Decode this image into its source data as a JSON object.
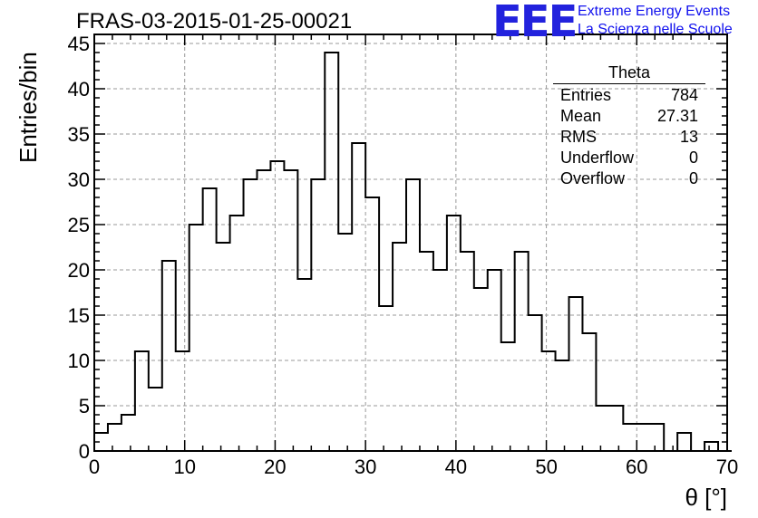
{
  "title": "FRAS-03-2015-01-25-00021",
  "logo": {
    "mark": "EEE",
    "line1": "Extreme Energy Events",
    "line2": "La Scienza nelle Scuole",
    "color": "#2222dd"
  },
  "stats": {
    "title": "Theta",
    "rows": [
      {
        "label": "Entries",
        "value": "784"
      },
      {
        "label": "Mean",
        "value": "27.31"
      },
      {
        "label": "RMS",
        "value": "13"
      },
      {
        "label": "Underflow",
        "value": "0"
      },
      {
        "label": "Overflow",
        "value": "0"
      }
    ]
  },
  "chart_data": {
    "type": "bar",
    "histogram": true,
    "title": "FRAS-03-2015-01-25-00021",
    "xlabel": "θ [°]",
    "ylabel": "Entries/bin",
    "xlim": [
      0,
      70
    ],
    "ylim": [
      0,
      46
    ],
    "grid": true,
    "bin_width": 1.5,
    "bin_start": 0,
    "xticks": [
      0,
      10,
      20,
      30,
      40,
      50,
      60,
      70
    ],
    "yticks": [
      0,
      5,
      10,
      15,
      20,
      25,
      30,
      35,
      40,
      45
    ],
    "values": [
      2,
      3,
      4,
      11,
      7,
      21,
      11,
      25,
      29,
      23,
      26,
      30,
      31,
      32,
      31,
      19,
      30,
      44,
      24,
      34,
      28,
      16,
      23,
      30,
      22,
      20,
      26,
      22,
      18,
      20,
      12,
      22,
      15,
      11,
      10,
      17,
      13,
      5,
      5,
      3,
      3,
      3,
      0,
      2,
      0,
      1,
      0
    ]
  }
}
